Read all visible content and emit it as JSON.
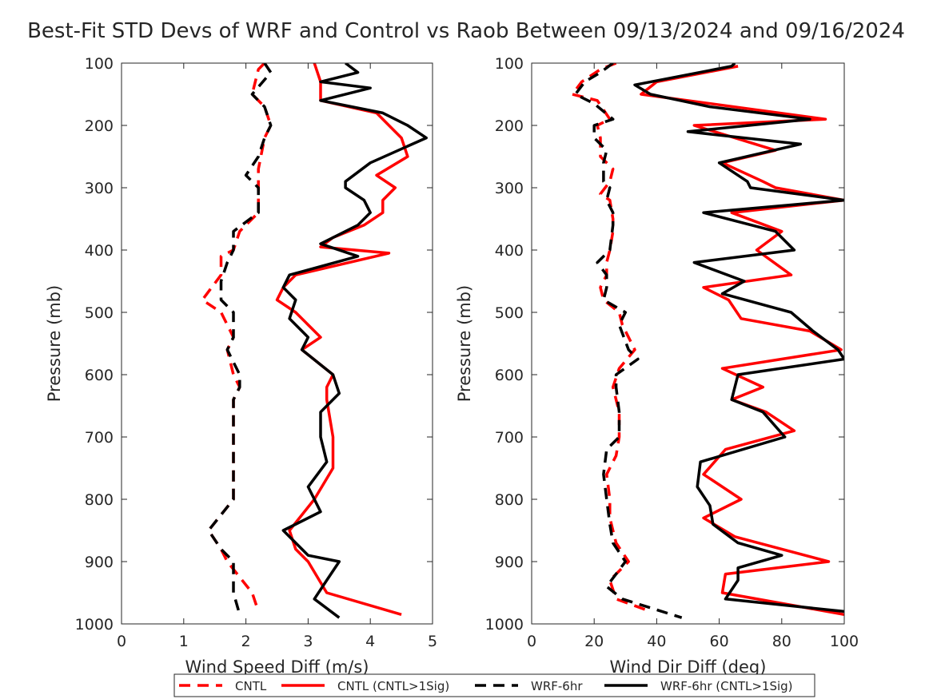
{
  "title": "Best-Fit STD Devs of WRF and Control vs Raob Between 09/13/2024 and 09/16/2024",
  "colors": {
    "cntl": "#ff0000",
    "wrf": "#000000"
  },
  "legend": {
    "placement": "bottom-center",
    "entries": [
      {
        "label": "CNTL",
        "color": "#ff0000",
        "dash": true
      },
      {
        "label": "CNTL (CNTL>1Sig)",
        "color": "#ff0000",
        "dash": false
      },
      {
        "label": "WRF-6hr",
        "color": "#000000",
        "dash": true
      },
      {
        "label": "WRF-6hr (CNTL>1Sig)",
        "color": "#000000",
        "dash": false
      }
    ]
  },
  "chart_data": [
    {
      "type": "line",
      "xlabel": "Wind Speed Diff (m/s)",
      "ylabel": "Pressure (mb)",
      "xlim": [
        0,
        5
      ],
      "ylim": [
        100,
        1000
      ],
      "y_reversed": true,
      "xticks": [
        "0",
        "1",
        "2",
        "3",
        "4",
        "5"
      ],
      "yticks": [
        "100",
        "200",
        "300",
        "400",
        "500",
        "600",
        "700",
        "800",
        "900",
        "1000"
      ],
      "grid": false,
      "series": [
        {
          "name": "CNTL",
          "pressure": [
            100,
            110,
            150,
            170,
            200,
            220,
            270,
            300,
            340,
            370,
            400,
            410,
            440,
            480,
            500,
            540,
            560,
            600,
            620,
            640,
            700,
            750,
            800,
            850,
            880,
            900,
            950,
            980
          ],
          "values": [
            2.3,
            2.2,
            2.1,
            2.3,
            2.4,
            2.3,
            2.2,
            2.2,
            2.2,
            1.9,
            1.8,
            1.6,
            1.6,
            1.3,
            1.6,
            1.8,
            1.7,
            1.8,
            1.9,
            1.8,
            1.8,
            1.8,
            1.8,
            1.4,
            1.6,
            1.7,
            2.1,
            2.2
          ]
        },
        {
          "name": "CNTL (CNTL>1Sig)",
          "pressure": [
            100,
            130,
            160,
            180,
            200,
            220,
            250,
            280,
            300,
            320,
            340,
            360,
            380,
            395,
            405,
            440,
            460,
            480,
            500,
            520,
            540,
            560,
            600,
            620,
            640,
            700,
            750,
            800,
            850,
            880,
            900,
            950,
            985
          ],
          "values": [
            3.1,
            3.2,
            3.2,
            4.1,
            4.3,
            4.5,
            4.6,
            4.1,
            4.4,
            4.2,
            4.2,
            3.9,
            3.4,
            3.2,
            4.3,
            2.8,
            2.6,
            2.5,
            2.8,
            3.0,
            3.2,
            2.9,
            3.4,
            3.3,
            3.3,
            3.4,
            3.4,
            3.1,
            2.7,
            2.8,
            3.0,
            3.3,
            4.5
          ]
        },
        {
          "name": "WRF-6hr",
          "pressure": [
            100,
            115,
            150,
            170,
            200,
            220,
            250,
            280,
            300,
            340,
            370,
            400,
            420,
            450,
            480,
            500,
            540,
            560,
            600,
            620,
            640,
            700,
            750,
            800,
            850,
            880,
            900,
            950,
            985
          ],
          "values": [
            2.3,
            2.4,
            2.1,
            2.3,
            2.4,
            2.3,
            2.2,
            2.0,
            2.2,
            2.2,
            1.8,
            1.8,
            1.7,
            1.6,
            1.6,
            1.8,
            1.8,
            1.7,
            1.9,
            1.9,
            1.8,
            1.8,
            1.8,
            1.8,
            1.4,
            1.6,
            1.8,
            1.8,
            1.9
          ]
        },
        {
          "name": "WRF-6hr (CNTL>1Sig)",
          "pressure": [
            100,
            115,
            130,
            140,
            160,
            180,
            200,
            220,
            260,
            290,
            300,
            320,
            340,
            360,
            390,
            410,
            440,
            460,
            480,
            510,
            540,
            560,
            600,
            630,
            660,
            700,
            740,
            780,
            820,
            850,
            890,
            900,
            930,
            960,
            990
          ],
          "values": [
            3.6,
            3.8,
            3.2,
            4.0,
            3.2,
            4.2,
            4.6,
            4.9,
            4.0,
            3.6,
            3.6,
            3.9,
            4.0,
            3.8,
            3.2,
            3.8,
            2.7,
            2.6,
            2.8,
            2.7,
            3.0,
            2.9,
            3.4,
            3.5,
            3.2,
            3.2,
            3.3,
            3.0,
            3.2,
            2.6,
            3.0,
            3.5,
            3.3,
            3.1,
            3.5
          ]
        }
      ]
    },
    {
      "type": "line",
      "xlabel": "Wind Dir Diff (deg)",
      "ylabel": "Pressure (mb)",
      "xlim": [
        0,
        100
      ],
      "ylim": [
        100,
        1000
      ],
      "y_reversed": true,
      "xticks": [
        "0",
        "20",
        "40",
        "60",
        "80",
        "100"
      ],
      "yticks": [
        "100",
        "200",
        "300",
        "400",
        "500",
        "600",
        "700",
        "800",
        "900",
        "1000"
      ],
      "grid": false,
      "series": [
        {
          "name": "CNTL",
          "pressure": [
            100,
            110,
            130,
            150,
            160,
            190,
            200,
            220,
            250,
            270,
            290,
            310,
            320,
            350,
            370,
            400,
            420,
            440,
            460,
            480,
            500,
            520,
            560,
            590,
            620,
            660,
            700,
            730,
            760,
            800,
            830,
            870,
            900,
            930,
            960,
            980
          ],
          "values": [
            27,
            22,
            16,
            13,
            21,
            25,
            21,
            22,
            22,
            26,
            25,
            22,
            25,
            26,
            26,
            25,
            24,
            24,
            22,
            23,
            28,
            29,
            33,
            28,
            26,
            28,
            28,
            27,
            24,
            25,
            25,
            27,
            31,
            25,
            27,
            38
          ]
        },
        {
          "name": "CNTL (CNTL>1Sig)",
          "pressure": [
            105,
            130,
            150,
            190,
            200,
            240,
            260,
            290,
            300,
            320,
            340,
            370,
            400,
            440,
            460,
            480,
            510,
            530,
            560,
            590,
            620,
            640,
            660,
            690,
            720,
            760,
            800,
            830,
            860,
            900,
            920,
            950,
            985
          ],
          "values": [
            66,
            40,
            35,
            94,
            52,
            78,
            61,
            74,
            78,
            100,
            64,
            80,
            72,
            83,
            55,
            63,
            67,
            89,
            99,
            61,
            74,
            64,
            75,
            84,
            62,
            55,
            67,
            55,
            65,
            95,
            62,
            61,
            100
          ]
        },
        {
          "name": "WRF-6hr",
          "pressure": [
            100,
            115,
            130,
            150,
            165,
            190,
            200,
            220,
            240,
            260,
            290,
            300,
            320,
            340,
            360,
            400,
            420,
            440,
            460,
            480,
            500,
            520,
            560,
            575,
            600,
            620,
            660,
            700,
            720,
            760,
            800,
            840,
            870,
            900,
            940,
            960,
            990
          ],
          "values": [
            26,
            22,
            17,
            14,
            20,
            26,
            20,
            20,
            24,
            23,
            23,
            25,
            24,
            26,
            26,
            25,
            21,
            24,
            24,
            23,
            30,
            28,
            31,
            34,
            27,
            27,
            28,
            28,
            24,
            23,
            24,
            25,
            26,
            30,
            24,
            29,
            48
          ]
        },
        {
          "name": "WRF-6hr (CNTL>1Sig)",
          "pressure": [
            100,
            105,
            135,
            150,
            170,
            190,
            210,
            230,
            260,
            290,
            300,
            320,
            340,
            370,
            400,
            420,
            450,
            470,
            500,
            530,
            560,
            575,
            600,
            640,
            660,
            700,
            740,
            780,
            810,
            840,
            870,
            890,
            910,
            930,
            960,
            980
          ],
          "values": [
            65,
            64,
            33,
            38,
            57,
            89,
            50,
            86,
            60,
            69,
            70,
            100,
            55,
            78,
            84,
            52,
            68,
            61,
            83,
            90,
            98,
            100,
            66,
            64,
            74,
            81,
            54,
            53,
            57,
            58,
            66,
            80,
            66,
            66,
            62,
            100
          ]
        }
      ]
    }
  ]
}
